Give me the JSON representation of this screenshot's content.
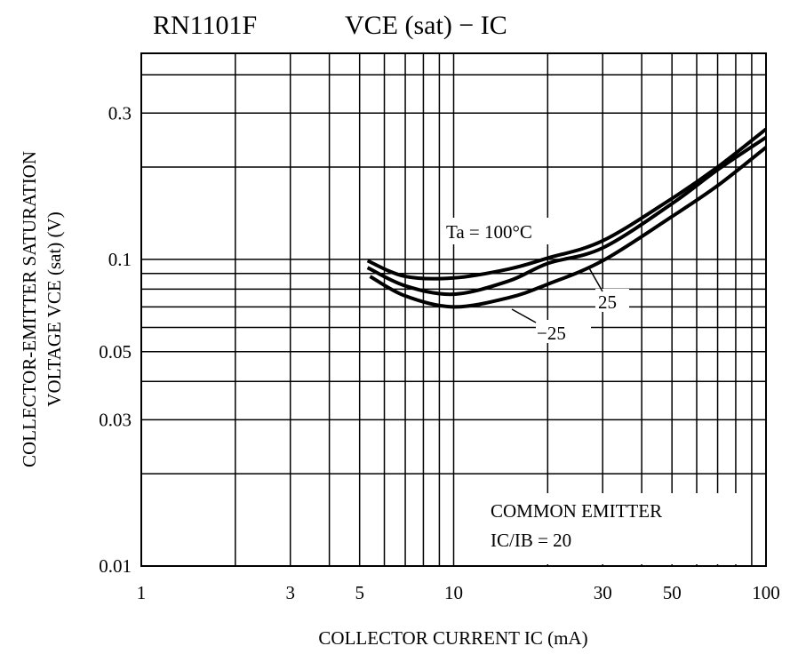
{
  "chart_data": {
    "type": "line",
    "title_part": "RN1101F",
    "title_formula": "VCE (sat) − IC",
    "xlabel": "COLLECTOR CURRENT  IC  (mA)",
    "ylabel_line1": "COLLECTOR-EMITTER SATURATION",
    "ylabel_line2": "VOLTAGE   VCE (sat)   (V)",
    "x_scale": "log",
    "y_scale": "log",
    "xlim": [
      1,
      100
    ],
    "ylim": [
      0.01,
      0.47
    ],
    "x_ticks": [
      1,
      3,
      5,
      10,
      30,
      50,
      100
    ],
    "x_tick_labels": [
      "1",
      "3",
      "5",
      "10",
      "30",
      "50",
      "100"
    ],
    "y_ticks": [
      0.01,
      0.03,
      0.05,
      0.1,
      0.3
    ],
    "y_tick_labels": [
      "0.01",
      "0.03",
      "0.05",
      "0.1",
      "0.3"
    ],
    "grid": true,
    "series": [
      {
        "name": "Ta = 100°C",
        "x": [
          5.3,
          7,
          10,
          15,
          20,
          30,
          50,
          70,
          100
        ],
        "y": [
          0.099,
          0.088,
          0.087,
          0.093,
          0.101,
          0.115,
          0.158,
          0.2,
          0.266
        ]
      },
      {
        "name": "25",
        "x": [
          5.3,
          7,
          10,
          15,
          20,
          30,
          50,
          70,
          100
        ],
        "y": [
          0.094,
          0.082,
          0.077,
          0.085,
          0.097,
          0.109,
          0.152,
          0.196,
          0.25
        ]
      },
      {
        "name": "−25",
        "x": [
          5.4,
          7,
          10,
          15,
          20,
          30,
          50,
          70,
          100
        ],
        "y": [
          0.088,
          0.076,
          0.07,
          0.075,
          0.083,
          0.099,
          0.138,
          0.174,
          0.232
        ]
      }
    ],
    "annotations": [
      "Ta = 100°C",
      "25",
      "−25"
    ],
    "legend_box": {
      "line1": "COMMON EMITTER",
      "line2": "IC/IB = 20"
    }
  }
}
